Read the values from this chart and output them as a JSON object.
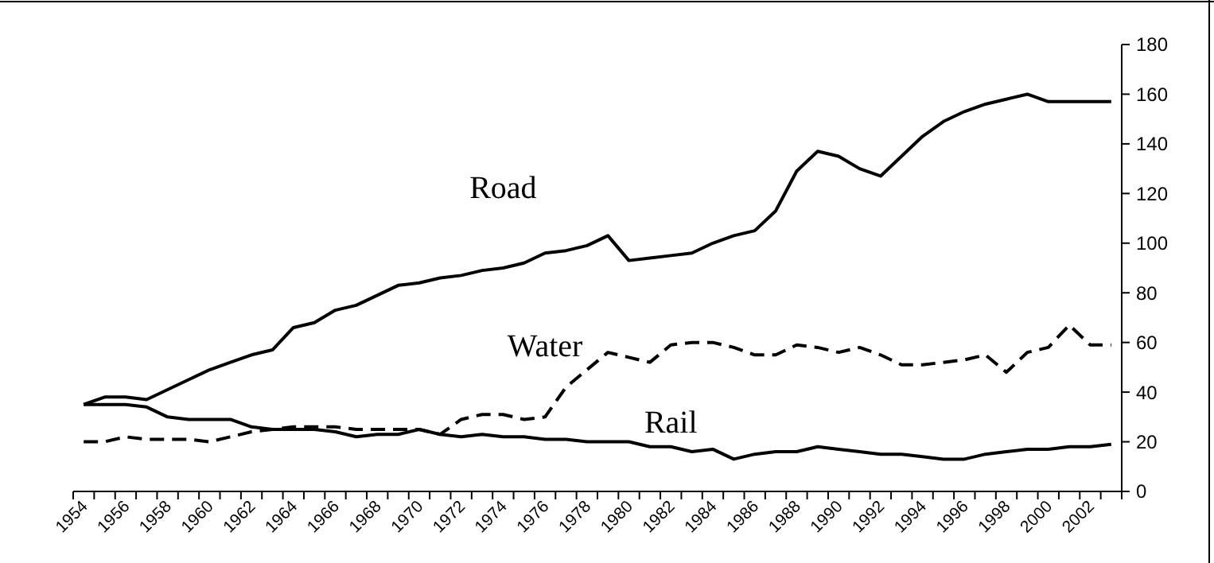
{
  "chart_data": {
    "type": "line",
    "categories": [
      "1954",
      null,
      "1956",
      null,
      "1958",
      null,
      "1960",
      null,
      "1962",
      null,
      "1964",
      null,
      "1966",
      null,
      "1968",
      null,
      "1970",
      null,
      "1972",
      null,
      "1974",
      null,
      "1976",
      null,
      "1978",
      null,
      "1980",
      null,
      "1982",
      null,
      "1984",
      null,
      "1986",
      null,
      "1988",
      null,
      "1990",
      null,
      "1992",
      null,
      "1994",
      null,
      "1996",
      null,
      "1998",
      null,
      "2000",
      null,
      "2002",
      null
    ],
    "series": [
      {
        "name": "Road",
        "color": "#000000",
        "line_style": "solid",
        "values": [
          35,
          38,
          38,
          37,
          41,
          45,
          49,
          52,
          55,
          57,
          66,
          68,
          73,
          75,
          79,
          83,
          84,
          86,
          87,
          89,
          90,
          92,
          96,
          97,
          99,
          103,
          93,
          94,
          95,
          96,
          100,
          103,
          105,
          113,
          129,
          137,
          135,
          130,
          127,
          135,
          143,
          149,
          153,
          156,
          158,
          160,
          157,
          157,
          157,
          157
        ]
      },
      {
        "name": "Water",
        "color": "#000000",
        "line_style": "dashed",
        "values": [
          20,
          20,
          22,
          21,
          21,
          21,
          20,
          22,
          24,
          25,
          26,
          26,
          26,
          25,
          25,
          25,
          25,
          23,
          29,
          31,
          31,
          29,
          30,
          42,
          49,
          56,
          54,
          52,
          59,
          60,
          60,
          58,
          55,
          55,
          59,
          58,
          56,
          58,
          55,
          51,
          51,
          52,
          53,
          55,
          48,
          56,
          58,
          67,
          59,
          59
        ]
      },
      {
        "name": "Rail",
        "color": "#000000",
        "line_style": "solid",
        "values": [
          35,
          35,
          35,
          34,
          30,
          29,
          29,
          29,
          26,
          25,
          25,
          25,
          24,
          22,
          23,
          23,
          25,
          23,
          22,
          23,
          22,
          22,
          21,
          21,
          20,
          20,
          20,
          18,
          18,
          16,
          17,
          13,
          15,
          16,
          16,
          18,
          17,
          16,
          15,
          15,
          14,
          13,
          13,
          15,
          16,
          17,
          17,
          18,
          18,
          19
        ]
      }
    ],
    "ylim": [
      0,
      180
    ],
    "yticks": [
      0,
      20,
      40,
      60,
      80,
      100,
      120,
      140,
      160,
      180
    ],
    "grid": false,
    "marker": "none"
  }
}
